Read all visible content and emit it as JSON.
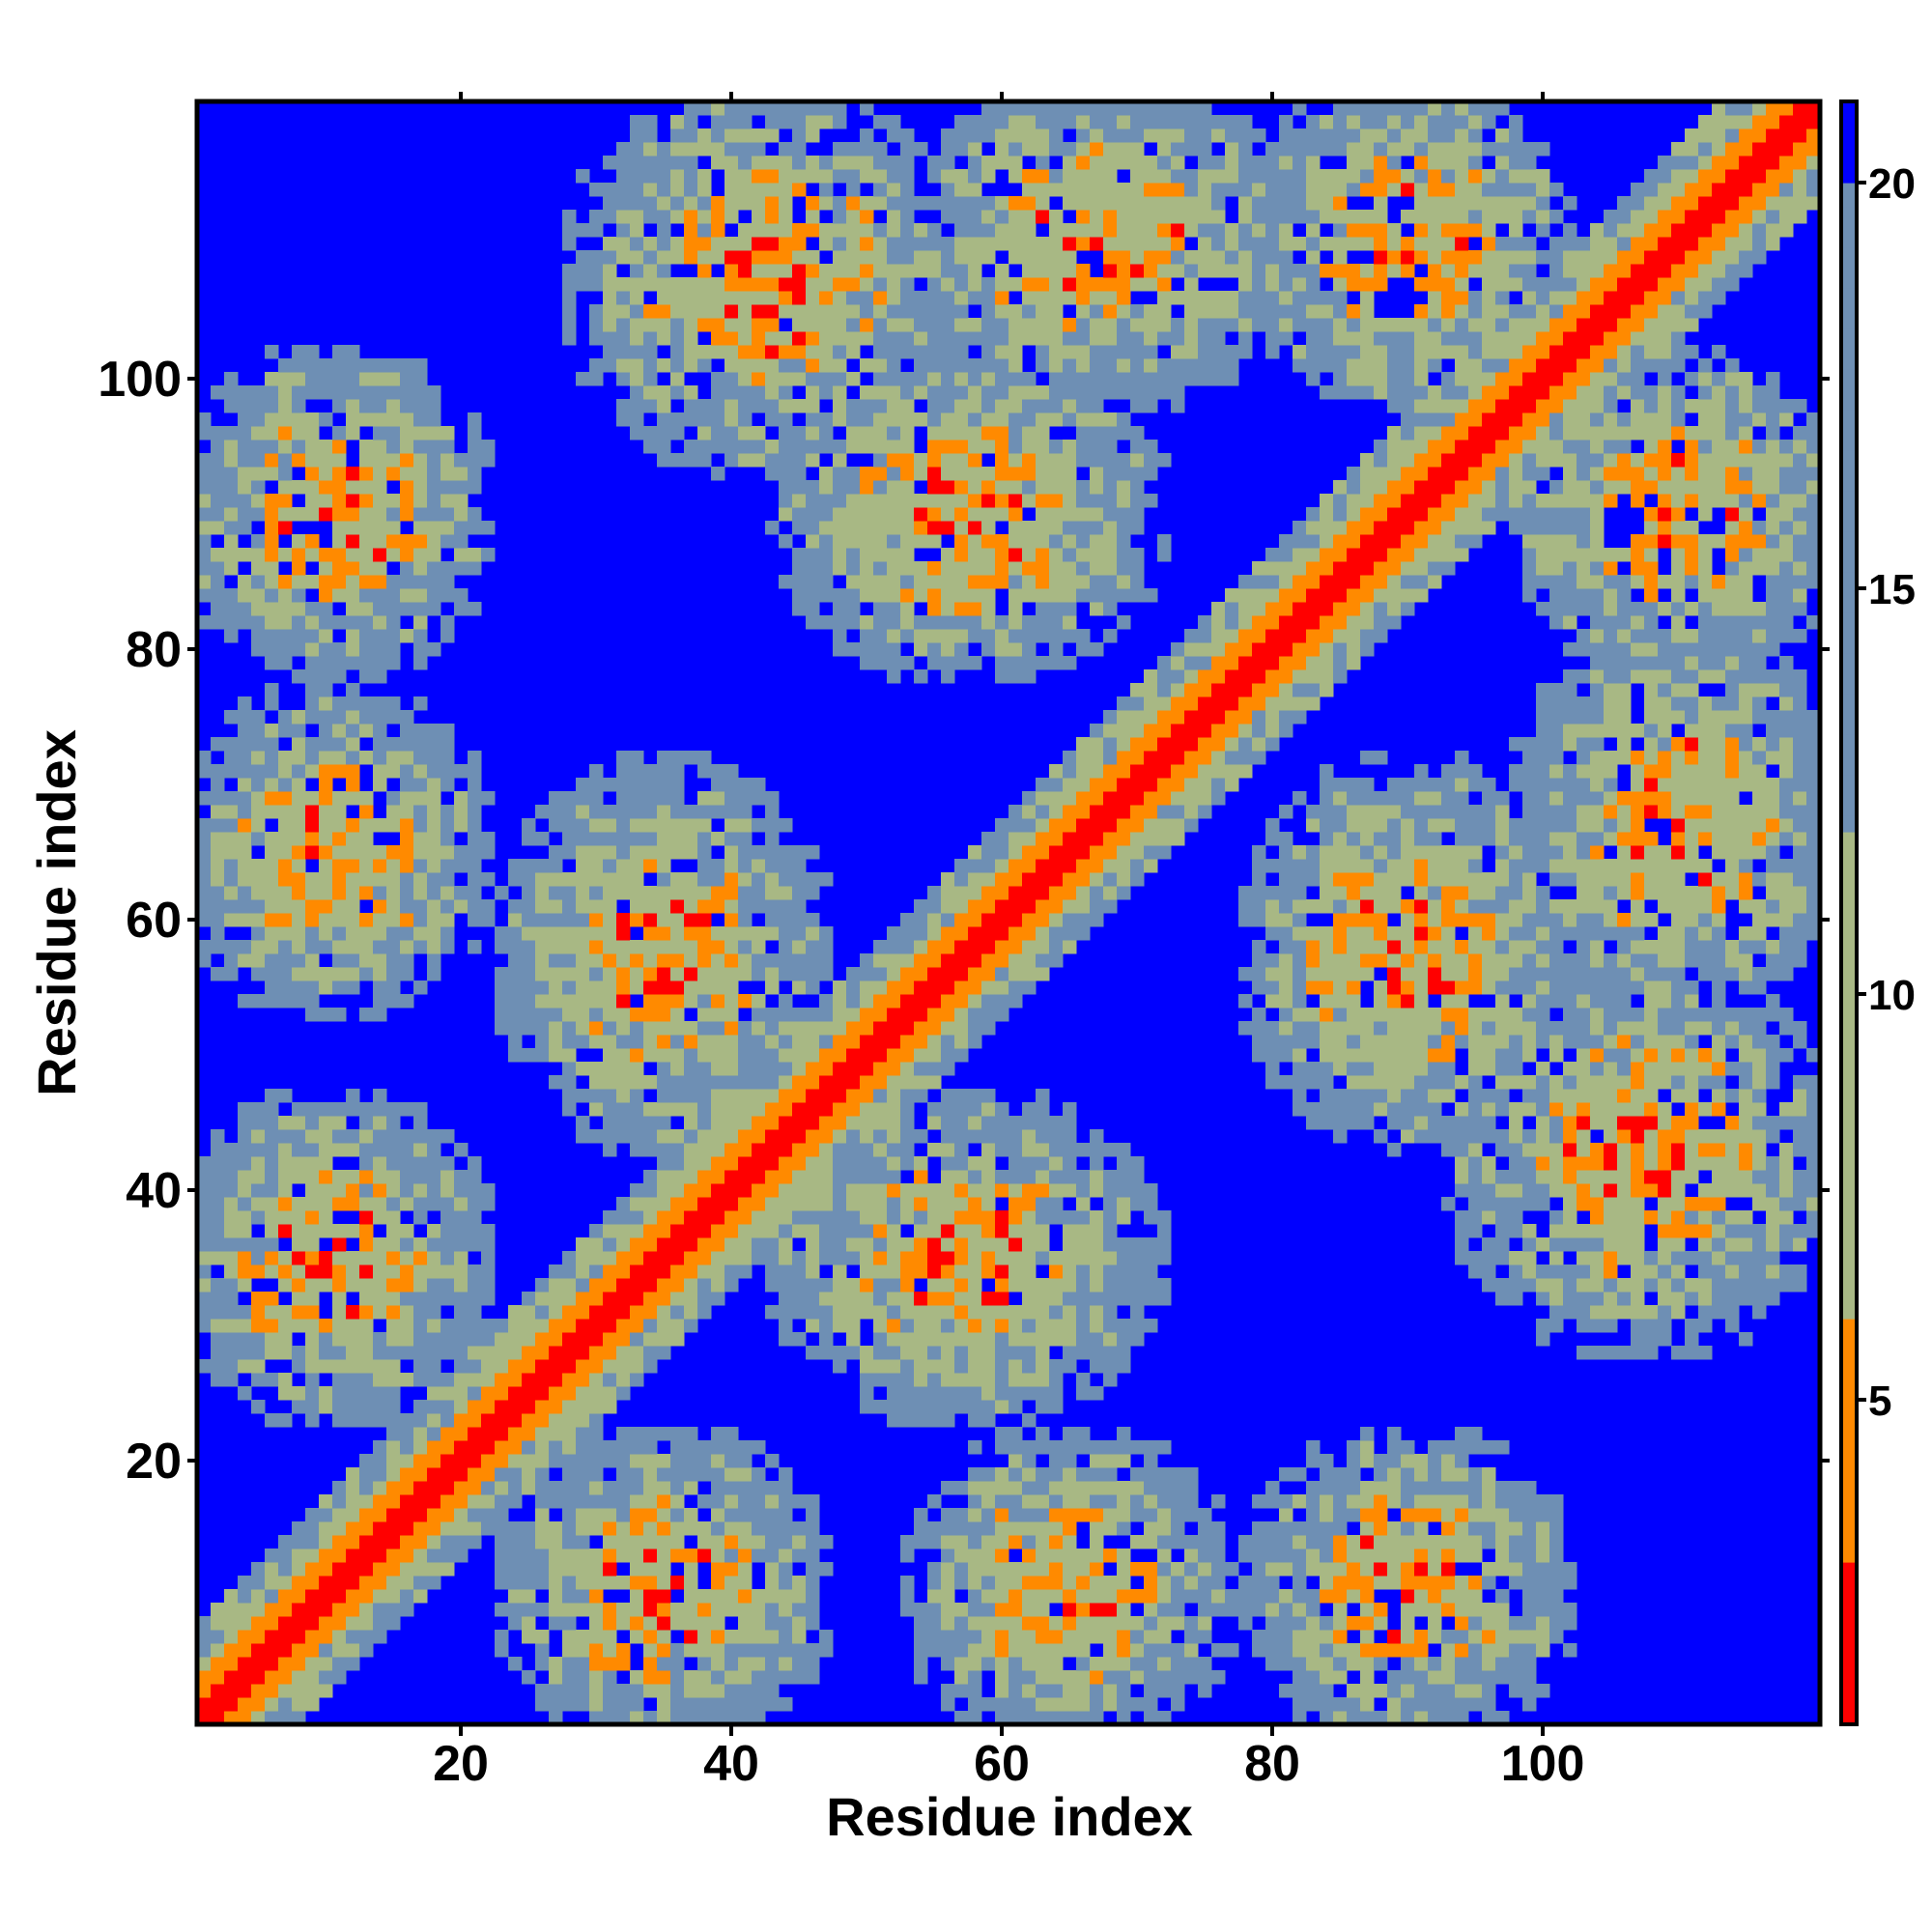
{
  "chart_data": {
    "type": "heatmap",
    "title": "",
    "xlabel": "Residue index",
    "ylabel": "Residue index",
    "n_residues": 120,
    "xlim": [
      1,
      120
    ],
    "ylim": [
      1,
      120
    ],
    "x_ticks": [
      20,
      40,
      60,
      80,
      100
    ],
    "y_ticks": [
      20,
      40,
      60,
      80,
      100
    ],
    "colorbar": {
      "ticks": [
        5,
        10,
        15,
        20
      ],
      "range": [
        1,
        21
      ],
      "colors": {
        "contact": "#ff0000",
        "near": "#ff8a00",
        "mid": "#a8b884",
        "far": "#6e8fb4",
        "none": "#0000ff"
      }
    },
    "description_of_values": "pairwise residue distance matrix; low values along the diagonal, higher off-diagonal, saturated (blue) beyond ~20",
    "contact_regions": [
      {
        "i": [
          1,
          20
        ],
        "j": [
          25,
          45
        ]
      },
      {
        "i": [
          1,
          20
        ],
        "j": [
          55,
          75
        ]
      },
      {
        "i": [
          1,
          20
        ],
        "j": [
          80,
          100
        ]
      },
      {
        "i": [
          25,
          45
        ],
        "j": [
          45,
          70
        ]
      },
      {
        "i": [
          45,
          70
        ],
        "j": [
          80,
          100
        ]
      },
      {
        "i": [
          80,
          100
        ],
        "j": [
          100,
          120
        ]
      },
      {
        "i": [
          55,
          80
        ],
        "j": [
          100,
          120
        ]
      },
      {
        "i": [
          30,
          55
        ],
        "j": [
          95,
          120
        ]
      }
    ]
  }
}
